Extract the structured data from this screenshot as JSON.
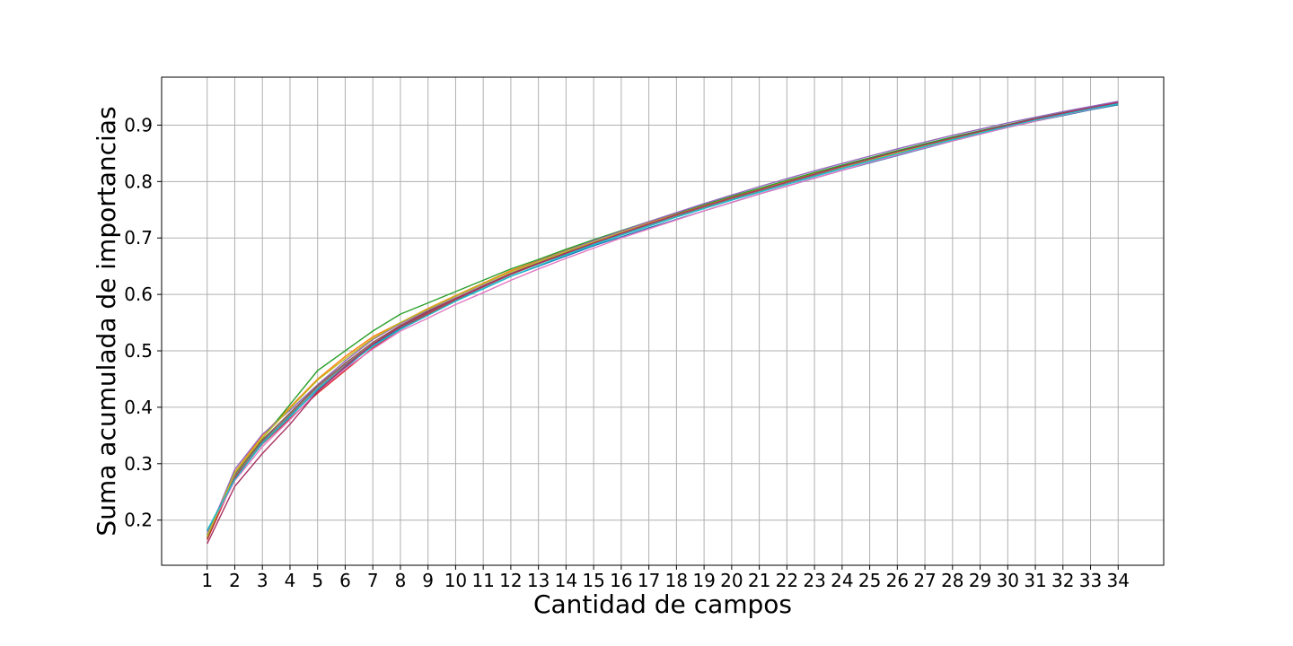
{
  "chart_data": {
    "type": "line",
    "title": "",
    "xlabel": "Cantidad de campos",
    "ylabel": "Suma acumulada de importancias",
    "x": [
      1,
      2,
      3,
      4,
      5,
      6,
      7,
      8,
      9,
      10,
      11,
      12,
      13,
      14,
      15,
      16,
      17,
      18,
      19,
      20,
      21,
      22,
      23,
      24,
      25,
      26,
      27,
      28,
      29,
      30,
      31,
      32,
      33,
      34
    ],
    "xlim": [
      -0.65,
      35.65
    ],
    "ylim": [
      0.12,
      0.985
    ],
    "yticks": [
      0.2,
      0.3,
      0.4,
      0.5,
      0.6,
      0.7,
      0.8,
      0.9
    ],
    "ytick_labels": [
      "0.2",
      "0.3",
      "0.4",
      "0.5",
      "0.6",
      "0.7",
      "0.8",
      "0.9"
    ],
    "xtick_labels": [
      "1",
      "2",
      "3",
      "4",
      "5",
      "6",
      "7",
      "8",
      "9",
      "10",
      "11",
      "12",
      "13",
      "14",
      "15",
      "16",
      "17",
      "18",
      "19",
      "20",
      "21",
      "22",
      "23",
      "24",
      "25",
      "26",
      "27",
      "28",
      "29",
      "30",
      "31",
      "32",
      "33",
      "34"
    ],
    "grid": true,
    "legend": "none",
    "series": [
      {
        "color": "#1f77b4",
        "values": [
          0.18,
          0.278,
          0.34,
          0.385,
          0.43,
          0.47,
          0.51,
          0.54,
          0.565,
          0.59,
          0.61,
          0.632,
          0.65,
          0.668,
          0.686,
          0.702,
          0.718,
          0.733,
          0.748,
          0.763,
          0.778,
          0.792,
          0.806,
          0.82,
          0.833,
          0.846,
          0.859,
          0.872,
          0.884,
          0.896,
          0.907,
          0.917,
          0.927,
          0.936
        ]
      },
      {
        "color": "#ff7f0e",
        "values": [
          0.17,
          0.285,
          0.35,
          0.4,
          0.45,
          0.49,
          0.525,
          0.55,
          0.575,
          0.598,
          0.62,
          0.642,
          0.66,
          0.678,
          0.695,
          0.712,
          0.728,
          0.743,
          0.758,
          0.773,
          0.787,
          0.801,
          0.815,
          0.828,
          0.841,
          0.853,
          0.866,
          0.878,
          0.889,
          0.9,
          0.911,
          0.921,
          0.931,
          0.94
        ]
      },
      {
        "color": "#2ca02c",
        "values": [
          0.175,
          0.28,
          0.345,
          0.405,
          0.465,
          0.5,
          0.535,
          0.565,
          0.585,
          0.605,
          0.625,
          0.645,
          0.662,
          0.68,
          0.697,
          0.713,
          0.729,
          0.744,
          0.759,
          0.774,
          0.788,
          0.802,
          0.816,
          0.829,
          0.842,
          0.855,
          0.867,
          0.879,
          0.89,
          0.901,
          0.912,
          0.922,
          0.932,
          0.941
        ]
      },
      {
        "color": "#d62728",
        "values": [
          0.165,
          0.275,
          0.335,
          0.38,
          0.425,
          0.465,
          0.505,
          0.538,
          0.565,
          0.59,
          0.614,
          0.637,
          0.656,
          0.674,
          0.692,
          0.709,
          0.725,
          0.74,
          0.755,
          0.77,
          0.784,
          0.798,
          0.812,
          0.826,
          0.839,
          0.852,
          0.864,
          0.876,
          0.888,
          0.9,
          0.911,
          0.921,
          0.931,
          0.94
        ]
      },
      {
        "color": "#9467bd",
        "values": [
          0.172,
          0.29,
          0.352,
          0.395,
          0.44,
          0.482,
          0.52,
          0.548,
          0.572,
          0.596,
          0.618,
          0.64,
          0.659,
          0.677,
          0.695,
          0.712,
          0.729,
          0.745,
          0.761,
          0.776,
          0.791,
          0.805,
          0.819,
          0.832,
          0.845,
          0.858,
          0.87,
          0.882,
          0.893,
          0.904,
          0.914,
          0.924,
          0.933,
          0.942
        ]
      },
      {
        "color": "#8c564b",
        "values": [
          0.168,
          0.283,
          0.342,
          0.39,
          0.438,
          0.478,
          0.515,
          0.545,
          0.57,
          0.593,
          0.615,
          0.637,
          0.656,
          0.674,
          0.691,
          0.708,
          0.724,
          0.74,
          0.755,
          0.77,
          0.784,
          0.798,
          0.812,
          0.826,
          0.839,
          0.852,
          0.864,
          0.876,
          0.888,
          0.899,
          0.91,
          0.92,
          0.93,
          0.939
        ]
      },
      {
        "color": "#e377c2",
        "values": [
          0.176,
          0.27,
          0.33,
          0.378,
          0.428,
          0.468,
          0.503,
          0.535,
          0.558,
          0.582,
          0.603,
          0.625,
          0.645,
          0.664,
          0.682,
          0.7,
          0.716,
          0.732,
          0.748,
          0.763,
          0.778,
          0.792,
          0.806,
          0.82,
          0.834,
          0.847,
          0.86,
          0.872,
          0.884,
          0.896,
          0.907,
          0.918,
          0.928,
          0.938
        ]
      },
      {
        "color": "#7f7f7f",
        "values": [
          0.173,
          0.279,
          0.338,
          0.387,
          0.435,
          0.475,
          0.512,
          0.542,
          0.567,
          0.591,
          0.613,
          0.635,
          0.654,
          0.672,
          0.69,
          0.707,
          0.723,
          0.739,
          0.754,
          0.769,
          0.783,
          0.797,
          0.811,
          0.825,
          0.838,
          0.851,
          0.864,
          0.876,
          0.888,
          0.899,
          0.91,
          0.92,
          0.93,
          0.939
        ]
      },
      {
        "color": "#bcbd22",
        "values": [
          0.171,
          0.284,
          0.346,
          0.398,
          0.448,
          0.486,
          0.522,
          0.55,
          0.574,
          0.597,
          0.619,
          0.64,
          0.658,
          0.676,
          0.693,
          0.71,
          0.726,
          0.741,
          0.756,
          0.771,
          0.785,
          0.799,
          0.813,
          0.826,
          0.839,
          0.851,
          0.863,
          0.875,
          0.887,
          0.898,
          0.909,
          0.919,
          0.929,
          0.938
        ]
      },
      {
        "color": "#17becf",
        "values": [
          0.182,
          0.272,
          0.336,
          0.383,
          0.432,
          0.472,
          0.508,
          0.538,
          0.563,
          0.588,
          0.61,
          0.632,
          0.651,
          0.67,
          0.688,
          0.705,
          0.721,
          0.737,
          0.752,
          0.767,
          0.781,
          0.795,
          0.809,
          0.823,
          0.836,
          0.849,
          0.862,
          0.874,
          0.886,
          0.898,
          0.909,
          0.919,
          0.929,
          0.938
        ]
      },
      {
        "color": "#a83261",
        "values": [
          0.158,
          0.26,
          0.318,
          0.37,
          0.428,
          0.472,
          0.512,
          0.543,
          0.568,
          0.592,
          0.614,
          0.636,
          0.655,
          0.673,
          0.691,
          0.708,
          0.725,
          0.741,
          0.756,
          0.771,
          0.785,
          0.799,
          0.813,
          0.827,
          0.84,
          0.853,
          0.865,
          0.877,
          0.889,
          0.9,
          0.911,
          0.921,
          0.931,
          0.94
        ]
      }
    ]
  }
}
